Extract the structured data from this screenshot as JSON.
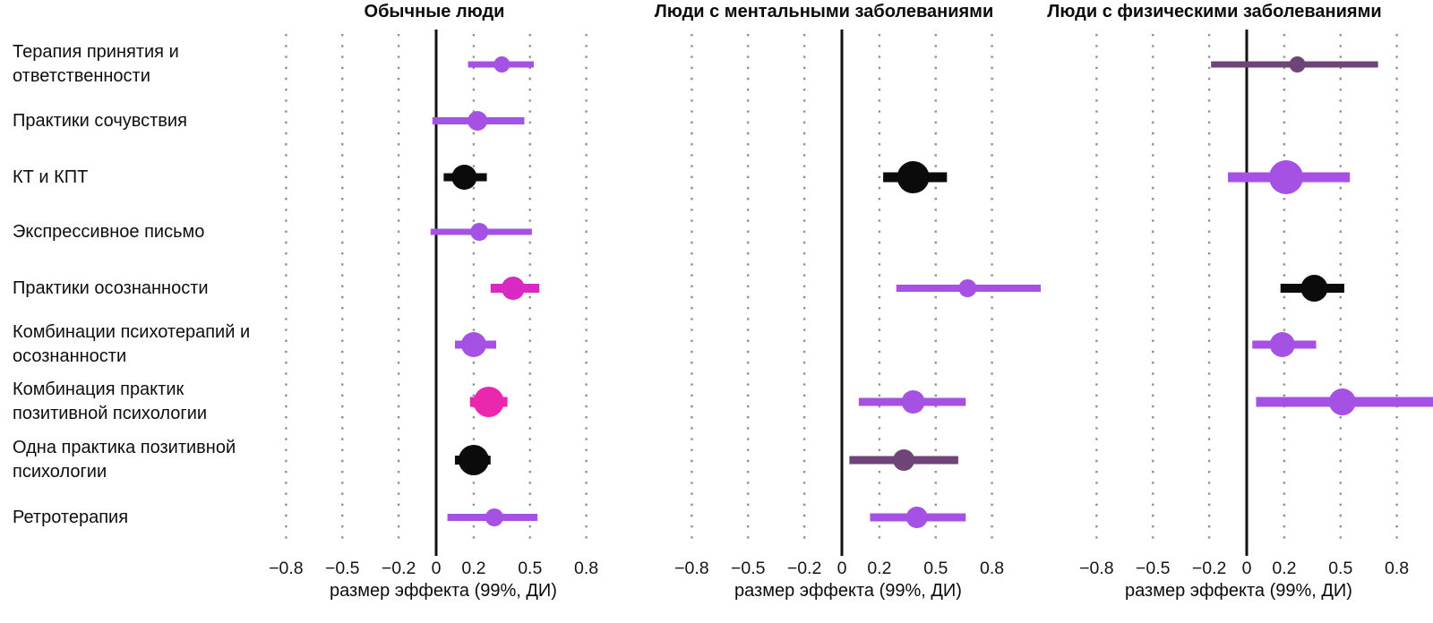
{
  "chart_data": {
    "type": "scatter",
    "variant": "forest-plot-dot-ci",
    "grid": "dotted-vertical",
    "legend": null,
    "categories": [
      "Терапия принятия и ответственности",
      "Практики сочувствия",
      "КТ и КПТ",
      "Экспрессивное письмо",
      "Практики осознанности",
      "Комбинации психотерапий и осознанности",
      "Комбинация практик позитивной психологии",
      "Одна практика позитивной психологии",
      "Ретротерапия"
    ],
    "xlabel": "размер эффекта (99%, ДИ)",
    "x_ticks": [
      {
        "value": -0.8,
        "label": "−0.8"
      },
      {
        "value": -0.5,
        "label": "−0.5"
      },
      {
        "value": -0.2,
        "label": "−0.2"
      },
      {
        "value": 0,
        "label": "0"
      },
      {
        "value": 0.2,
        "label": "0.2"
      },
      {
        "value": 0.5,
        "label": "0.5"
      },
      {
        "value": 0.8,
        "label": "0.8"
      }
    ],
    "colors": {
      "purple": "#a551e3",
      "magenta": "#d929c3",
      "pink": "#eb27b0",
      "black": "#0b0b0b",
      "plum": "#6f4478",
      "gridline": "#8f8f8f",
      "axis": "#111111"
    },
    "panels": [
      {
        "title": "Обычные люди",
        "xlim": [
          -0.9,
          0.87
        ],
        "points": [
          {
            "category_index": 0,
            "category": "Терапия принятия и ответственности",
            "estimate": 0.35,
            "ci_low": 0.17,
            "ci_high": 0.52,
            "color": "purple",
            "dot_radius": 9,
            "line_width": 7
          },
          {
            "category_index": 1,
            "category": "Практики сочувствия",
            "estimate": 0.22,
            "ci_low": -0.02,
            "ci_high": 0.47,
            "color": "purple",
            "dot_radius": 11,
            "line_width": 8
          },
          {
            "category_index": 2,
            "category": "КТ и КПТ",
            "estimate": 0.15,
            "ci_low": 0.04,
            "ci_high": 0.27,
            "color": "black",
            "dot_radius": 14,
            "line_width": 9
          },
          {
            "category_index": 3,
            "category": "Экспрессивное письмо",
            "estimate": 0.23,
            "ci_low": -0.03,
            "ci_high": 0.51,
            "color": "purple",
            "dot_radius": 10,
            "line_width": 7
          },
          {
            "category_index": 4,
            "category": "Практики осознанности",
            "estimate": 0.41,
            "ci_low": 0.29,
            "ci_high": 0.55,
            "color": "magenta",
            "dot_radius": 13,
            "line_width": 10
          },
          {
            "category_index": 5,
            "category": "Комбинации психотерапий и осознанности",
            "estimate": 0.2,
            "ci_low": 0.1,
            "ci_high": 0.32,
            "color": "purple",
            "dot_radius": 14,
            "line_width": 9
          },
          {
            "category_index": 6,
            "category": "Комбинация практик позитивной психологии",
            "estimate": 0.28,
            "ci_low": 0.18,
            "ci_high": 0.38,
            "color": "pink",
            "dot_radius": 17,
            "line_width": 11
          },
          {
            "category_index": 7,
            "category": "Одна практика позитивной психологии",
            "estimate": 0.2,
            "ci_low": 0.1,
            "ci_high": 0.29,
            "color": "black",
            "dot_radius": 17,
            "line_width": 10
          },
          {
            "category_index": 8,
            "category": "Ретротерапия",
            "estimate": 0.31,
            "ci_low": 0.06,
            "ci_high": 0.54,
            "color": "purple",
            "dot_radius": 10,
            "line_width": 8
          }
        ]
      },
      {
        "title": "Люди с ментальными заболеваниями",
        "xlim": [
          -0.9,
          1.09
        ],
        "points": [
          {
            "category_index": 2,
            "category": "КТ и КПТ",
            "estimate": 0.38,
            "ci_low": 0.22,
            "ci_high": 0.56,
            "color": "black",
            "dot_radius": 18,
            "line_width": 11
          },
          {
            "category_index": 4,
            "category": "Практики осознанности",
            "estimate": 0.67,
            "ci_low": 0.29,
            "ci_high": 1.06,
            "color": "purple",
            "dot_radius": 10,
            "line_width": 8
          },
          {
            "category_index": 6,
            "category": "Комбинация практик позитивной психологии",
            "estimate": 0.38,
            "ci_low": 0.09,
            "ci_high": 0.66,
            "color": "purple",
            "dot_radius": 13,
            "line_width": 9
          },
          {
            "category_index": 7,
            "category": "Одна практика позитивной психологии",
            "estimate": 0.33,
            "ci_low": 0.04,
            "ci_high": 0.62,
            "color": "plum",
            "dot_radius": 12,
            "line_width": 9
          },
          {
            "category_index": 8,
            "category": "Ретротерапия",
            "estimate": 0.4,
            "ci_low": 0.15,
            "ci_high": 0.66,
            "color": "purple",
            "dot_radius": 12,
            "line_width": 9
          }
        ]
      },
      {
        "title": "Люди с физическими заболеваниями",
        "xlim": [
          -0.87,
          0.99
        ],
        "points": [
          {
            "category_index": 0,
            "category": "Терапия принятия и ответственности",
            "estimate": 0.27,
            "ci_low": -0.19,
            "ci_high": 0.7,
            "color": "plum",
            "dot_radius": 9,
            "line_width": 7
          },
          {
            "category_index": 2,
            "category": "КТ и КПТ",
            "estimate": 0.21,
            "ci_low": -0.1,
            "ci_high": 0.55,
            "color": "purple",
            "dot_radius": 19,
            "line_width": 11
          },
          {
            "category_index": 4,
            "category": "Практики осознанности",
            "estimate": 0.36,
            "ci_low": 0.18,
            "ci_high": 0.52,
            "color": "black",
            "dot_radius": 15,
            "line_width": 10
          },
          {
            "category_index": 5,
            "category": "Комбинации психотерапий и осознанности",
            "estimate": 0.19,
            "ci_low": 0.03,
            "ci_high": 0.37,
            "color": "purple",
            "dot_radius": 14,
            "line_width": 9
          },
          {
            "category_index": 6,
            "category": "Комбинация практик позитивной психологии",
            "estimate": 0.51,
            "ci_low": 0.05,
            "ci_high": 1.0,
            "color": "purple",
            "dot_radius": 15,
            "line_width": 11
          }
        ]
      }
    ]
  }
}
